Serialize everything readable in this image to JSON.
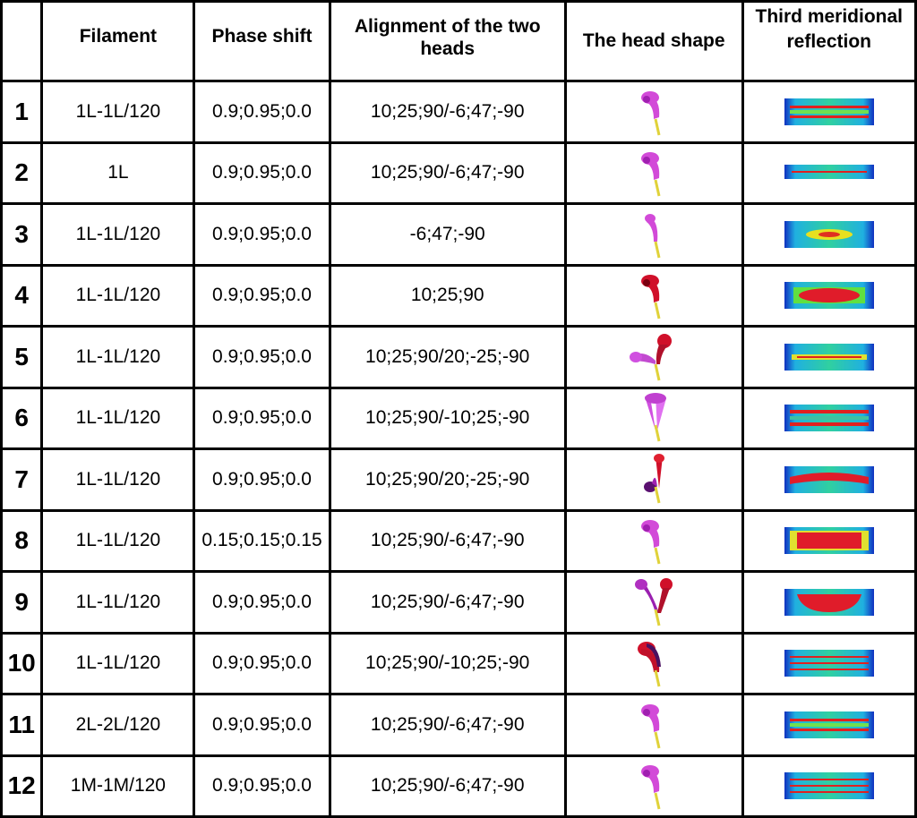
{
  "table": {
    "headers": [
      "",
      "Filament",
      "Phase shift",
      "Alignment of the two heads",
      "The head shape",
      "Third meridional reflection"
    ],
    "rows": [
      {
        "num": "1",
        "filament": "1L-1L/120",
        "phase": "0.9;0.95;0.0",
        "align": "10;25;90/-6;47;-90",
        "head": "single-magenta",
        "refl": "blue-band"
      },
      {
        "num": "2",
        "filament": "1L",
        "phase": "0.9;0.95;0.0",
        "align": "10;25;90/-6;47;-90",
        "head": "single-magenta",
        "refl": "thin-band"
      },
      {
        "num": "3",
        "filament": "1L-1L/120",
        "phase": "0.9;0.95;0.0",
        "align": "-6;47;-90",
        "head": "single-magenta-slim",
        "refl": "yellow-center"
      },
      {
        "num": "4",
        "filament": "1L-1L/120",
        "phase": "0.9;0.95;0.0",
        "align": "10;25;90",
        "head": "single-red",
        "refl": "red-center"
      },
      {
        "num": "5",
        "filament": "1L-1L/120",
        "phase": "0.9;0.95;0.0",
        "align": "10;25;90/20;-25;-90",
        "head": "double-spread",
        "refl": "green-band"
      },
      {
        "num": "6",
        "filament": "1L-1L/120",
        "phase": "0.9;0.95;0.0",
        "align": "10;25;90/-10;25;-90",
        "head": "double-cone",
        "refl": "double-band"
      },
      {
        "num": "7",
        "filament": "1L-1L/120",
        "phase": "0.9;0.95;0.0",
        "align": "10;25;90/20;-25;-90",
        "head": "double-red-up",
        "refl": "red-arc"
      },
      {
        "num": "8",
        "filament": "1L-1L/120",
        "phase": "0.15;0.15;0.15",
        "align": "10;25;90/-6;47;-90",
        "head": "single-magenta",
        "refl": "red-block"
      },
      {
        "num": "9",
        "filament": "1L-1L/120",
        "phase": "0.9;0.95;0.0",
        "align": "10;25;90/-6;47;-90",
        "head": "double-v",
        "refl": "red-bowl"
      },
      {
        "num": "10",
        "filament": "1L-1L/120",
        "phase": "0.9;0.95;0.0",
        "align": "10;25;90/-10;25;-90",
        "head": "double-dark",
        "refl": "stripes"
      },
      {
        "num": "11",
        "filament": "2L-2L/120",
        "phase": "0.9;0.95;0.0",
        "align": "10;25;90/-6;47;-90",
        "head": "single-magenta",
        "refl": "blue-band"
      },
      {
        "num": "12",
        "filament": "1M-1M/120",
        "phase": "0.9;0.95;0.0",
        "align": "10;25;90/-6;47;-90",
        "head": "single-magenta",
        "refl": "stripes"
      }
    ]
  }
}
